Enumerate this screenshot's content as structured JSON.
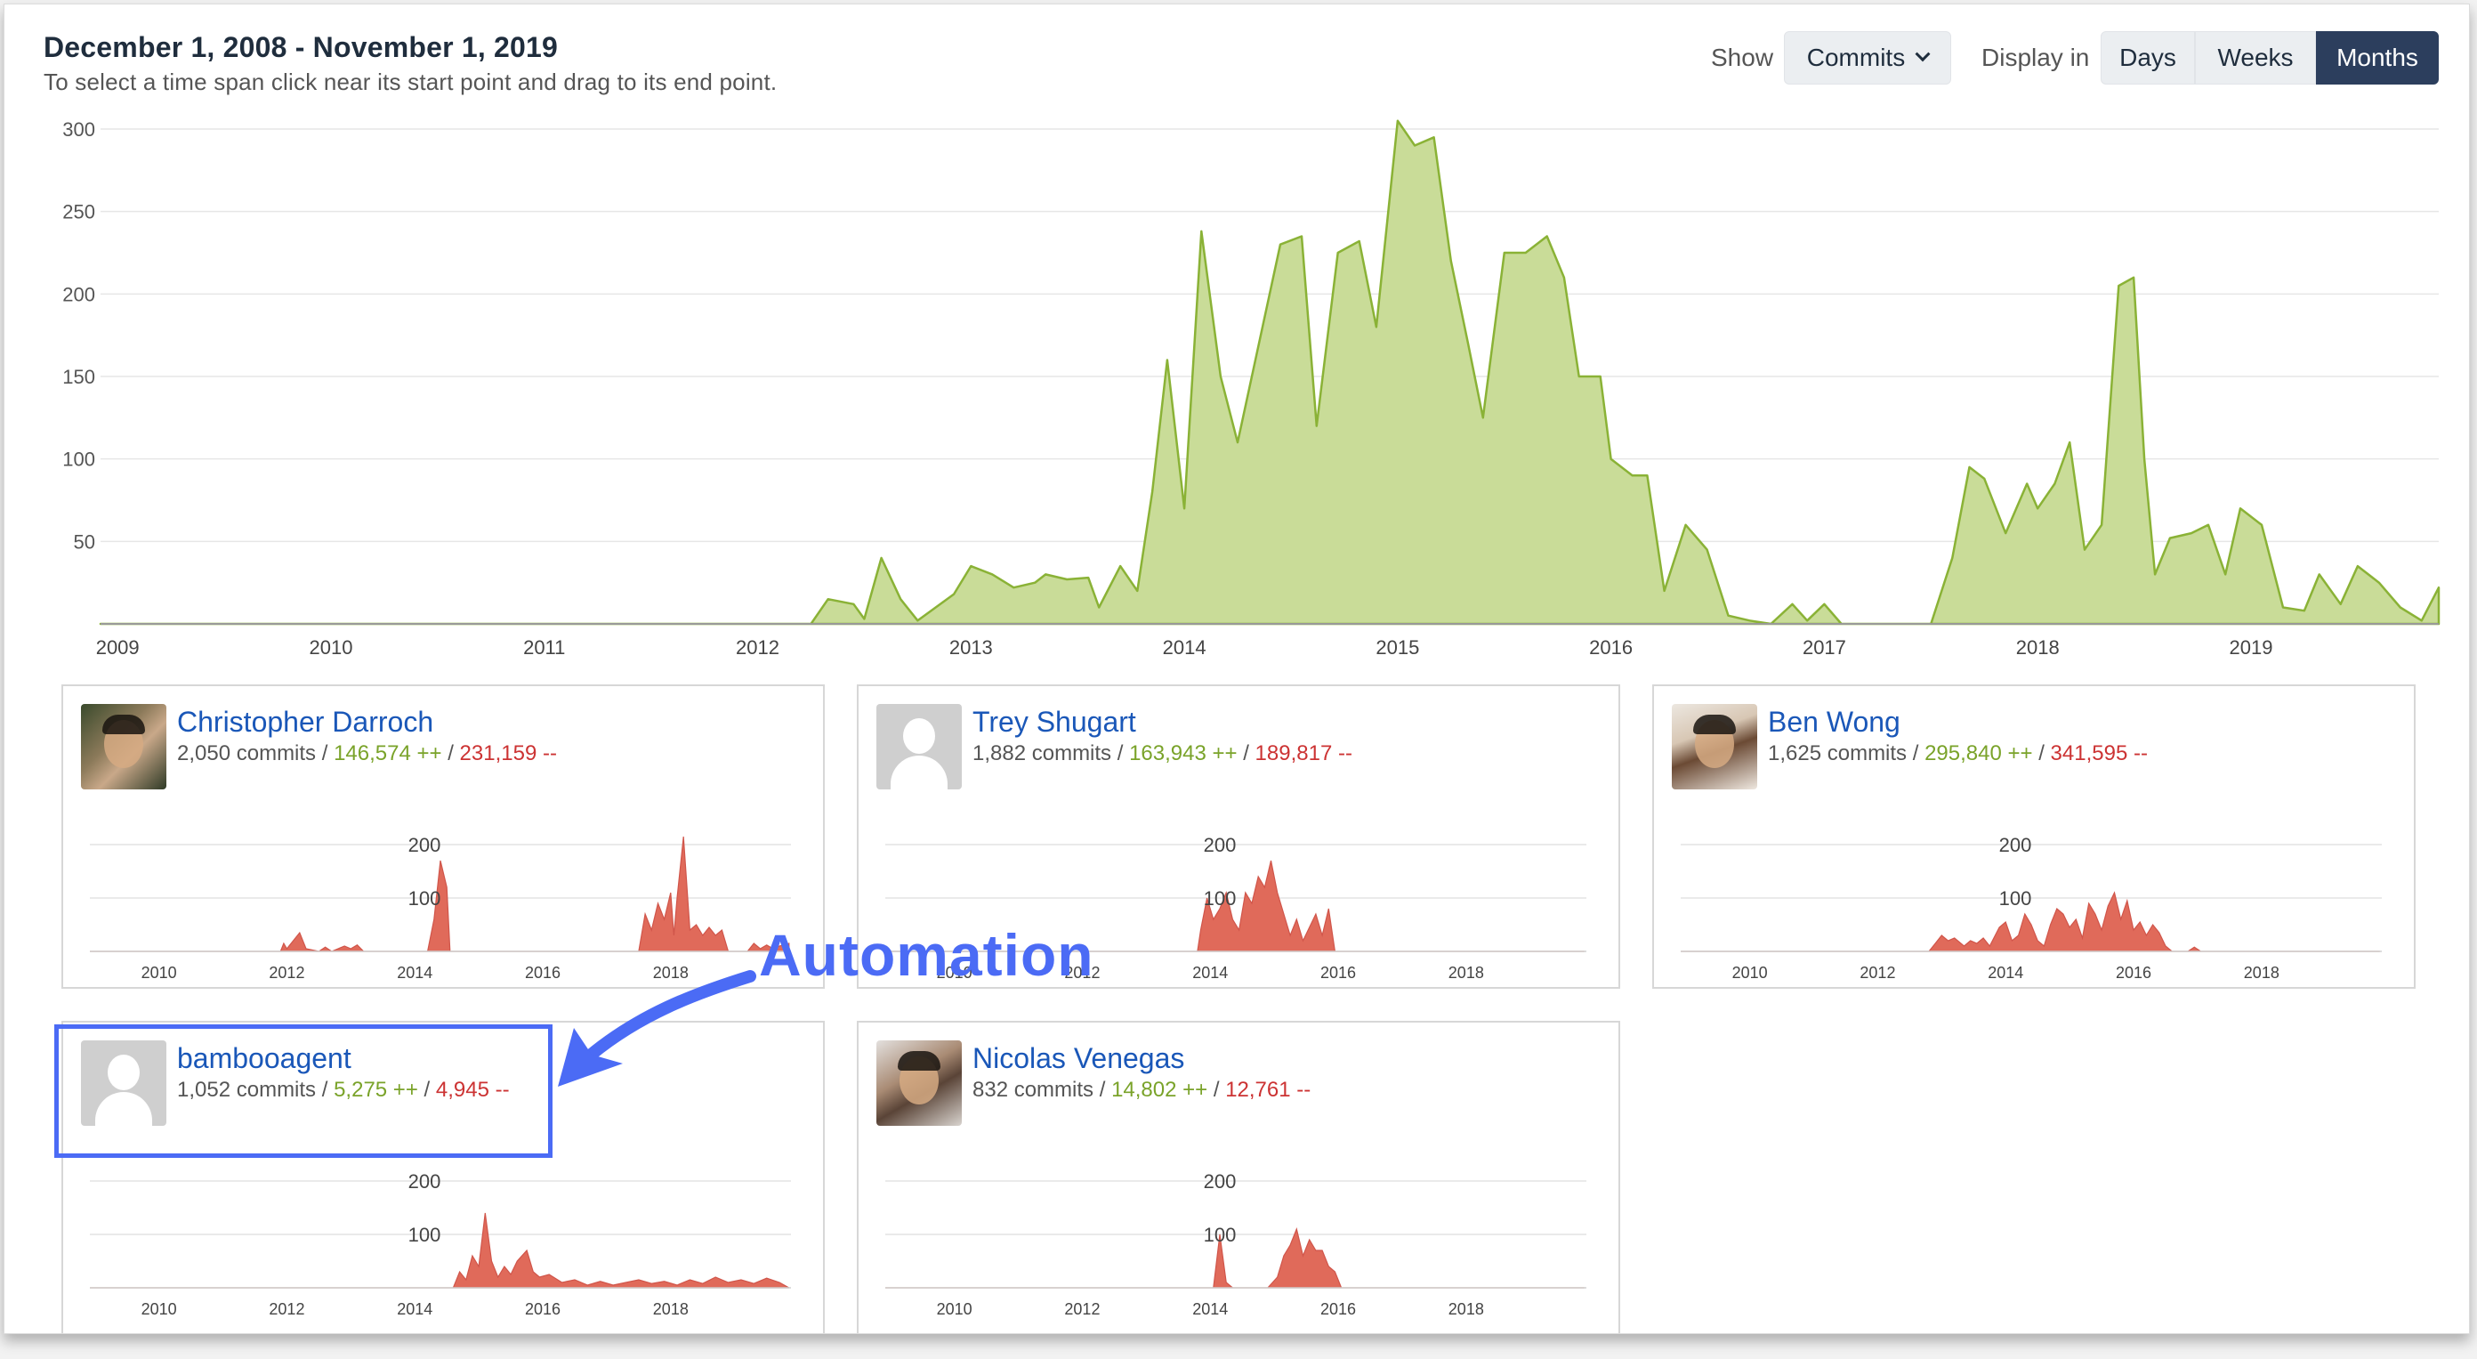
{
  "header": {
    "title": "December 1, 2008 - November 1, 2019",
    "subtitle": "To select a time span click near its start point and drag to its end point."
  },
  "controls": {
    "show_label": "Show",
    "show_value": "Commits",
    "display_label": "Display in",
    "display_options": [
      "Days",
      "Weeks",
      "Months"
    ],
    "display_active": "Months"
  },
  "main_chart": {
    "type": "area",
    "color": "#c9dc98",
    "stroke": "#8ab236",
    "y_ticks": [
      "300",
      "250",
      "200",
      "150",
      "100",
      "50"
    ],
    "x_ticks": [
      "2009",
      "2010",
      "2011",
      "2012",
      "2013",
      "2014",
      "2015",
      "2016",
      "2017",
      "2018",
      "2019"
    ],
    "ylim": [
      0,
      300
    ]
  },
  "chart_data": {
    "type": "area",
    "ylim": [
      0,
      300
    ],
    "x_tick_labels": [
      "2009",
      "2010",
      "2011",
      "2012",
      "2013",
      "2014",
      "2015",
      "2016",
      "2017",
      "2018",
      "2019"
    ],
    "y_tick_labels": [
      "50",
      "100",
      "150",
      "200",
      "250",
      "300"
    ],
    "series": [
      {
        "values": [
          [
            2008.92,
            0
          ],
          [
            2012.25,
            0
          ],
          [
            2012.33,
            15
          ],
          [
            2012.45,
            12
          ],
          [
            2012.5,
            3
          ],
          [
            2012.58,
            40
          ],
          [
            2012.67,
            15
          ],
          [
            2012.75,
            2
          ],
          [
            2012.92,
            18
          ],
          [
            2013.0,
            35
          ],
          [
            2013.1,
            30
          ],
          [
            2013.2,
            22
          ],
          [
            2013.3,
            25
          ],
          [
            2013.35,
            30
          ],
          [
            2013.45,
            27
          ],
          [
            2013.55,
            28
          ],
          [
            2013.6,
            10
          ],
          [
            2013.7,
            35
          ],
          [
            2013.78,
            20
          ],
          [
            2013.85,
            80
          ],
          [
            2013.92,
            160
          ],
          [
            2014.0,
            70
          ],
          [
            2014.08,
            238
          ],
          [
            2014.17,
            150
          ],
          [
            2014.25,
            110
          ],
          [
            2014.35,
            170
          ],
          [
            2014.45,
            230
          ],
          [
            2014.55,
            235
          ],
          [
            2014.62,
            120
          ],
          [
            2014.72,
            225
          ],
          [
            2014.82,
            232
          ],
          [
            2014.9,
            180
          ],
          [
            2015.0,
            305
          ],
          [
            2015.08,
            290
          ],
          [
            2015.17,
            295
          ],
          [
            2015.25,
            220
          ],
          [
            2015.33,
            170
          ],
          [
            2015.4,
            125
          ],
          [
            2015.5,
            225
          ],
          [
            2015.6,
            225
          ],
          [
            2015.7,
            235
          ],
          [
            2015.78,
            210
          ],
          [
            2015.85,
            150
          ],
          [
            2015.95,
            150
          ],
          [
            2016.0,
            100
          ],
          [
            2016.1,
            90
          ],
          [
            2016.17,
            90
          ],
          [
            2016.25,
            20
          ],
          [
            2016.35,
            60
          ],
          [
            2016.45,
            45
          ],
          [
            2016.55,
            5
          ],
          [
            2016.65,
            2
          ],
          [
            2016.75,
            0
          ],
          [
            2016.85,
            12
          ],
          [
            2016.92,
            2
          ],
          [
            2017.0,
            12
          ],
          [
            2017.08,
            0
          ],
          [
            2017.5,
            0
          ],
          [
            2017.6,
            40
          ],
          [
            2017.68,
            95
          ],
          [
            2017.75,
            88
          ],
          [
            2017.85,
            55
          ],
          [
            2017.95,
            85
          ],
          [
            2018.0,
            70
          ],
          [
            2018.08,
            85
          ],
          [
            2018.15,
            110
          ],
          [
            2018.22,
            45
          ],
          [
            2018.3,
            60
          ],
          [
            2018.38,
            205
          ],
          [
            2018.45,
            210
          ],
          [
            2018.5,
            100
          ],
          [
            2018.55,
            30
          ],
          [
            2018.62,
            52
          ],
          [
            2018.72,
            55
          ],
          [
            2018.8,
            60
          ],
          [
            2018.88,
            30
          ],
          [
            2018.95,
            70
          ],
          [
            2019.05,
            60
          ],
          [
            2019.15,
            10
          ],
          [
            2019.25,
            8
          ],
          [
            2019.32,
            30
          ],
          [
            2019.42,
            12
          ],
          [
            2019.5,
            35
          ],
          [
            2019.6,
            25
          ],
          [
            2019.7,
            10
          ],
          [
            2019.8,
            2
          ],
          [
            2019.88,
            22
          ]
        ]
      }
    ]
  },
  "contributors": [
    {
      "name": "Christopher Darroch",
      "commits": "2,050 commits",
      "plus": "146,574 ++",
      "minus": "231,159 --",
      "avatar": "photo1",
      "chart_data": {
        "type": "area",
        "ylim": [
          0,
          200
        ],
        "x_ticks": [
          "2010",
          "2012",
          "2014",
          "2016",
          "2018"
        ],
        "y_ticks": [
          "200",
          "100"
        ],
        "values": [
          [
            2008.92,
            0
          ],
          [
            2011.9,
            0
          ],
          [
            2011.95,
            15
          ],
          [
            2012.0,
            5
          ],
          [
            2012.1,
            20
          ],
          [
            2012.2,
            35
          ],
          [
            2012.3,
            5
          ],
          [
            2012.5,
            0
          ],
          [
            2012.6,
            8
          ],
          [
            2012.7,
            0
          ],
          [
            2012.9,
            10
          ],
          [
            2013.0,
            5
          ],
          [
            2013.1,
            12
          ],
          [
            2013.2,
            0
          ],
          [
            2013.4,
            0
          ],
          [
            2014.2,
            0
          ],
          [
            2014.3,
            60
          ],
          [
            2014.4,
            170
          ],
          [
            2014.5,
            120
          ],
          [
            2014.55,
            0
          ],
          [
            2017.5,
            0
          ],
          [
            2017.6,
            70
          ],
          [
            2017.7,
            40
          ],
          [
            2017.8,
            90
          ],
          [
            2017.9,
            60
          ],
          [
            2018.0,
            110
          ],
          [
            2018.05,
            30
          ],
          [
            2018.1,
            100
          ],
          [
            2018.2,
            215
          ],
          [
            2018.3,
            40
          ],
          [
            2018.4,
            50
          ],
          [
            2018.5,
            30
          ],
          [
            2018.6,
            45
          ],
          [
            2018.7,
            30
          ],
          [
            2018.8,
            40
          ],
          [
            2018.9,
            0
          ],
          [
            2019.2,
            0
          ],
          [
            2019.3,
            15
          ],
          [
            2019.4,
            5
          ],
          [
            2019.5,
            12
          ],
          [
            2019.6,
            5
          ],
          [
            2019.7,
            10
          ],
          [
            2019.85,
            15
          ]
        ]
      }
    },
    {
      "name": "Trey Shugart",
      "commits": "1,882 commits",
      "plus": "163,943 ++",
      "minus": "189,817 --",
      "avatar": "blank",
      "chart_data": {
        "type": "area",
        "ylim": [
          0,
          200
        ],
        "x_ticks": [
          "2010",
          "2012",
          "2014",
          "2016",
          "2018"
        ],
        "y_ticks": [
          "200",
          "100"
        ],
        "values": [
          [
            2008.92,
            0
          ],
          [
            2013.8,
            0
          ],
          [
            2013.85,
            40
          ],
          [
            2013.95,
            100
          ],
          [
            2014.05,
            60
          ],
          [
            2014.15,
            80
          ],
          [
            2014.25,
            110
          ],
          [
            2014.35,
            60
          ],
          [
            2014.45,
            40
          ],
          [
            2014.55,
            110
          ],
          [
            2014.65,
            90
          ],
          [
            2014.75,
            140
          ],
          [
            2014.85,
            120
          ],
          [
            2014.95,
            170
          ],
          [
            2015.05,
            110
          ],
          [
            2015.15,
            70
          ],
          [
            2015.25,
            30
          ],
          [
            2015.35,
            60
          ],
          [
            2015.45,
            20
          ],
          [
            2015.55,
            45
          ],
          [
            2015.65,
            70
          ],
          [
            2015.75,
            30
          ],
          [
            2015.85,
            80
          ],
          [
            2015.95,
            0
          ],
          [
            2019.85,
            0
          ]
        ]
      }
    },
    {
      "name": "Ben Wong",
      "commits": "1,625 commits",
      "plus": "295,840 ++",
      "minus": "341,595 --",
      "avatar": "photo2",
      "chart_data": {
        "type": "area",
        "ylim": [
          0,
          200
        ],
        "x_ticks": [
          "2010",
          "2012",
          "2014",
          "2016",
          "2018"
        ],
        "y_ticks": [
          "200",
          "100"
        ],
        "values": [
          [
            2008.92,
            0
          ],
          [
            2012.8,
            0
          ],
          [
            2012.9,
            15
          ],
          [
            2013.0,
            30
          ],
          [
            2013.1,
            20
          ],
          [
            2013.2,
            25
          ],
          [
            2013.35,
            10
          ],
          [
            2013.45,
            20
          ],
          [
            2013.55,
            15
          ],
          [
            2013.65,
            25
          ],
          [
            2013.75,
            10
          ],
          [
            2013.9,
            45
          ],
          [
            2014.0,
            55
          ],
          [
            2014.1,
            20
          ],
          [
            2014.2,
            30
          ],
          [
            2014.3,
            70
          ],
          [
            2014.4,
            50
          ],
          [
            2014.5,
            20
          ],
          [
            2014.6,
            10
          ],
          [
            2014.7,
            50
          ],
          [
            2014.8,
            80
          ],
          [
            2014.9,
            70
          ],
          [
            2015.0,
            45
          ],
          [
            2015.1,
            60
          ],
          [
            2015.2,
            25
          ],
          [
            2015.3,
            90
          ],
          [
            2015.4,
            70
          ],
          [
            2015.5,
            40
          ],
          [
            2015.6,
            85
          ],
          [
            2015.7,
            110
          ],
          [
            2015.8,
            60
          ],
          [
            2015.9,
            95
          ],
          [
            2016.0,
            40
          ],
          [
            2016.1,
            55
          ],
          [
            2016.2,
            30
          ],
          [
            2016.3,
            50
          ],
          [
            2016.4,
            35
          ],
          [
            2016.5,
            10
          ],
          [
            2016.6,
            0
          ],
          [
            2016.85,
            0
          ],
          [
            2016.95,
            8
          ],
          [
            2017.05,
            0
          ],
          [
            2019.85,
            0
          ]
        ]
      }
    },
    {
      "name": "bambooagent",
      "commits": "1,052 commits",
      "plus": "5,275 ++",
      "minus": "4,945 --",
      "avatar": "blank",
      "chart_data": {
        "type": "area",
        "ylim": [
          0,
          200
        ],
        "x_ticks": [
          "2010",
          "2012",
          "2014",
          "2016",
          "2018"
        ],
        "y_ticks": [
          "200",
          "100"
        ],
        "values": [
          [
            2008.92,
            0
          ],
          [
            2014.6,
            0
          ],
          [
            2014.7,
            30
          ],
          [
            2014.8,
            15
          ],
          [
            2014.9,
            60
          ],
          [
            2015.0,
            40
          ],
          [
            2015.1,
            140
          ],
          [
            2015.2,
            50
          ],
          [
            2015.3,
            20
          ],
          [
            2015.4,
            40
          ],
          [
            2015.5,
            25
          ],
          [
            2015.6,
            50
          ],
          [
            2015.75,
            70
          ],
          [
            2015.85,
            30
          ],
          [
            2015.95,
            20
          ],
          [
            2016.1,
            25
          ],
          [
            2016.3,
            10
          ],
          [
            2016.5,
            15
          ],
          [
            2016.7,
            5
          ],
          [
            2016.9,
            12
          ],
          [
            2017.1,
            5
          ],
          [
            2017.3,
            10
          ],
          [
            2017.5,
            15
          ],
          [
            2017.7,
            8
          ],
          [
            2017.9,
            12
          ],
          [
            2018.1,
            5
          ],
          [
            2018.3,
            15
          ],
          [
            2018.5,
            8
          ],
          [
            2018.7,
            20
          ],
          [
            2018.9,
            10
          ],
          [
            2019.1,
            15
          ],
          [
            2019.3,
            8
          ],
          [
            2019.5,
            18
          ],
          [
            2019.7,
            10
          ],
          [
            2019.85,
            0
          ]
        ]
      }
    },
    {
      "name": "Nicolas Venegas",
      "commits": "832 commits",
      "plus": "14,802 ++",
      "minus": "12,761 --",
      "avatar": "photo3",
      "chart_data": {
        "type": "area",
        "ylim": [
          0,
          200
        ],
        "x_ticks": [
          "2010",
          "2012",
          "2014",
          "2016",
          "2018"
        ],
        "y_ticks": [
          "200",
          "100"
        ],
        "values": [
          [
            2008.92,
            0
          ],
          [
            2014.05,
            0
          ],
          [
            2014.15,
            100
          ],
          [
            2014.25,
            10
          ],
          [
            2014.35,
            0
          ],
          [
            2014.9,
            0
          ],
          [
            2015.05,
            20
          ],
          [
            2015.15,
            60
          ],
          [
            2015.25,
            80
          ],
          [
            2015.35,
            110
          ],
          [
            2015.45,
            60
          ],
          [
            2015.55,
            90
          ],
          [
            2015.65,
            70
          ],
          [
            2015.75,
            70
          ],
          [
            2015.85,
            40
          ],
          [
            2015.95,
            30
          ],
          [
            2016.05,
            0
          ],
          [
            2019.85,
            0
          ]
        ]
      }
    }
  ],
  "annotation": {
    "label": "Automation"
  }
}
